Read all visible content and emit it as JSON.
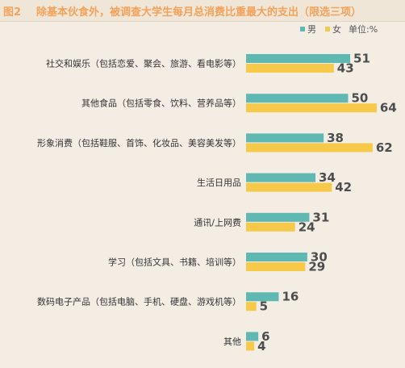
{
  "figure_label": "图2",
  "title": "除基本伙食外，被调查大学生每月总消费比重最大的支出（限选三项）",
  "legend": {
    "male": "男",
    "female": "女",
    "unit": "单位:%"
  },
  "colors": {
    "male": "#5fb8b2",
    "female": "#f7c94a",
    "label_text": "#333333",
    "value_text": "#4d4d4d",
    "title": "#f2a25a"
  },
  "chart_data": {
    "type": "bar",
    "orientation": "horizontal",
    "title": "除基本伙食外，被调查大学生每月总消费比重最大的支出（限选三项）",
    "unit": "%",
    "legend_position": "top-right",
    "categories": [
      "社交和娱乐（包括恋爱、聚会、旅游、看电影等）",
      "其他食品（包括零食、饮料、营养品等）",
      "形象消费（包括鞋服、首饰、化妆品、美容美发等）",
      "生活日用品",
      "通讯/上网费",
      "学习（包括文具、书籍、培训等）",
      "数码电子产品（包括电脑、手机、硬盘、游戏机等）",
      "其他"
    ],
    "series": [
      {
        "name": "男",
        "values": [
          51,
          50,
          38,
          34,
          31,
          30,
          16,
          6
        ]
      },
      {
        "name": "女",
        "values": [
          43,
          64,
          62,
          42,
          24,
          29,
          5,
          4
        ]
      }
    ]
  }
}
